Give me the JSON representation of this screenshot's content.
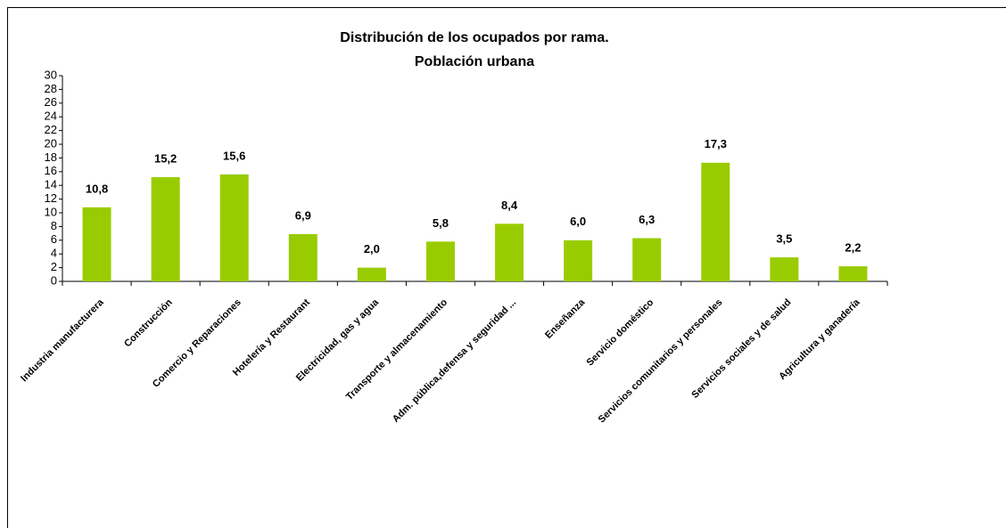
{
  "chart_data": {
    "type": "bar",
    "title": "Distribución de los ocupados por rama.",
    "subtitle": "Población urbana",
    "categories": [
      "Industria manufacturera",
      "Construcción",
      "Comercio y Reparaciones",
      "Hotelería y Restaurant",
      "Electricidad, gas y agua",
      "Transporte y almacenamiento",
      "Adm. pública,defensa y seguridad ...",
      "Enseñanza",
      "Servicio doméstico",
      "Servicios comunitarios y personales",
      "Servicios sociales y de salud",
      "Agricultura y ganadería"
    ],
    "values": [
      10.8,
      15.2,
      15.6,
      6.9,
      2.0,
      5.8,
      8.4,
      6.0,
      6.3,
      17.3,
      3.5,
      2.2
    ],
    "value_labels": [
      "10,8",
      "15,2",
      "15,6",
      "6,9",
      "2,0",
      "5,8",
      "8,4",
      "6,0",
      "6,3",
      "17,3",
      "3,5",
      "2,2"
    ],
    "color": "#99cc00",
    "ylim": [
      0,
      30
    ],
    "yticks": [
      0,
      2,
      4,
      6,
      8,
      10,
      12,
      14,
      16,
      18,
      20,
      22,
      24,
      26,
      28,
      30
    ],
    "grid": false
  }
}
